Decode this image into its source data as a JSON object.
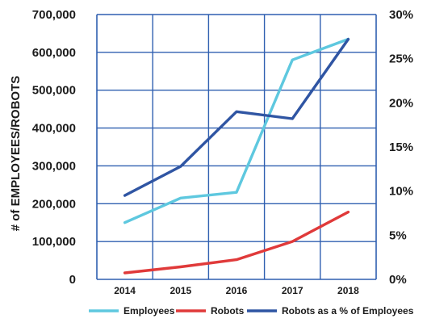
{
  "chart_data": {
    "type": "line",
    "categories": [
      "2014",
      "2015",
      "2016",
      "2017",
      "2018"
    ],
    "ylabel": "# of EMPLOYEES/ROBOTS",
    "ylim": [
      0,
      700000
    ],
    "y_ticks": [
      "0",
      "100,000",
      "200,000",
      "300,000",
      "400,000",
      "500,000",
      "600,000",
      "700,000"
    ],
    "y2lim": [
      0,
      30
    ],
    "y2_ticks": [
      "0%",
      "5%",
      "10%",
      "15%",
      "20%",
      "25%",
      "30%"
    ],
    "grid": true,
    "legend_position": "bottom",
    "series": [
      {
        "name": "Employees",
        "axis": "left",
        "color": "#5ec8df",
        "values": [
          150000,
          215000,
          230000,
          580000,
          635000
        ]
      },
      {
        "name": "Robots",
        "axis": "left",
        "color": "#e03a3a",
        "values": [
          17000,
          33000,
          52000,
          100000,
          178000
        ]
      },
      {
        "name": "Robots as a % of Employees",
        "axis": "right",
        "color": "#2f55a3",
        "values": [
          9.5,
          12.8,
          19.0,
          18.2,
          27.2
        ]
      }
    ]
  }
}
